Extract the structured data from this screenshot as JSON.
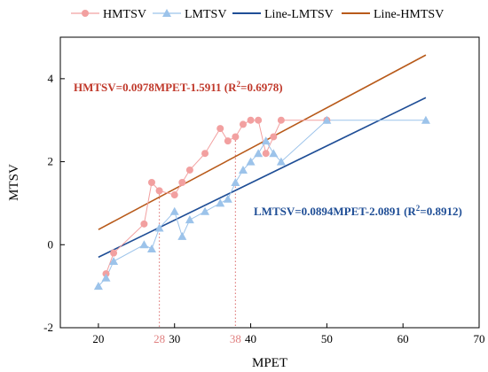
{
  "chart_data": {
    "type": "scatter",
    "xlabel": "MPET",
    "ylabel": "MTSV",
    "xlim": [
      15,
      70
    ],
    "ylim": [
      -2,
      5
    ],
    "x_ticks": [
      20,
      30,
      40,
      50,
      60,
      70
    ],
    "y_ticks": [
      -2,
      0,
      2,
      4
    ],
    "grid": false,
    "legend_position": "top",
    "legend": [
      "HMTSV",
      "LMTSV",
      "Line-LMTSV",
      "Line-HMTSV"
    ],
    "colors": {
      "hmtsv": "#f2a0a0",
      "lmtsv": "#9cc3ea",
      "line_lmtsv": "#1f4e96",
      "line_hmtsv": "#b85a1a",
      "hmtsv_eq": "#c0392b",
      "lmtsv_eq": "#1f4e96",
      "marker_28": "#e08080",
      "marker_38": "#e08080"
    },
    "series": [
      {
        "name": "HMTSV",
        "style": "line-markers",
        "marker": "circle",
        "x": [
          21,
          22,
          26,
          27,
          28,
          30,
          31,
          32,
          34,
          36,
          37,
          38,
          39,
          40,
          41,
          42,
          43,
          44,
          50
        ],
        "y": [
          -0.7,
          -0.2,
          0.5,
          1.5,
          1.3,
          1.2,
          1.5,
          1.8,
          2.2,
          2.8,
          2.5,
          2.6,
          2.9,
          3.0,
          3.0,
          2.2,
          2.6,
          3.0,
          3.0
        ]
      },
      {
        "name": "LMTSV",
        "style": "line-markers",
        "marker": "triangle",
        "x": [
          20,
          21,
          22,
          26,
          27,
          28,
          30,
          31,
          32,
          34,
          36,
          37,
          38,
          39,
          40,
          41,
          42,
          43,
          44,
          50,
          63
        ],
        "y": [
          -1.0,
          -0.8,
          -0.4,
          0.0,
          -0.1,
          0.4,
          0.8,
          0.2,
          0.6,
          0.8,
          1.0,
          1.1,
          1.5,
          1.8,
          2.0,
          2.2,
          2.5,
          2.2,
          2.0,
          3.0,
          3.0
        ]
      },
      {
        "name": "Line-LMTSV",
        "style": "fit",
        "slope": 0.0894,
        "intercept": -2.0891,
        "x_range": [
          20,
          63
        ]
      },
      {
        "name": "Line-HMTSV",
        "style": "fit",
        "slope": 0.0978,
        "intercept": -1.5911,
        "x_range": [
          20,
          63
        ]
      }
    ],
    "annotations": {
      "hmtsv_equation": {
        "main": "HMTSV=0.0978MPET-1.5911 (R",
        "sup": "2",
        "tail": "=0.6978)"
      },
      "lmtsv_equation": {
        "main": "LMTSV=0.0894MPET-2.0891 (R",
        "sup": "2",
        "tail": "=0.8912)"
      },
      "marker_lines": [
        {
          "label": "28",
          "x": 28,
          "y_top": 1.3
        },
        {
          "label": "38",
          "x": 38,
          "y_top": 2.6
        }
      ]
    }
  }
}
